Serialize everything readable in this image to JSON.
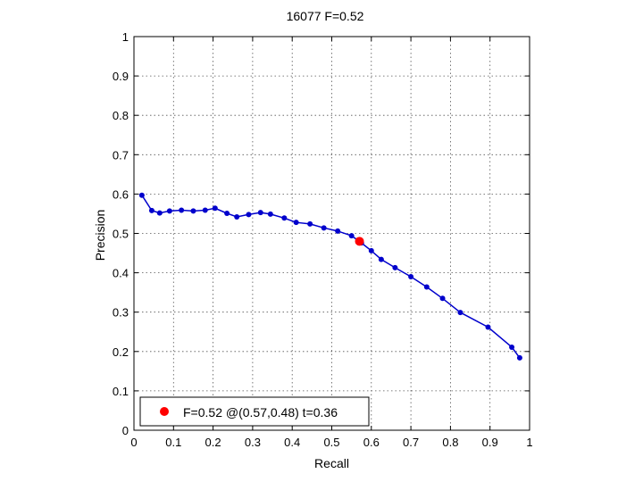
{
  "chart_data": {
    "type": "line",
    "title": "16077 F=0.52",
    "xlabel": "Recall",
    "ylabel": "Precision",
    "xlim": [
      0,
      1
    ],
    "ylim": [
      0,
      1
    ],
    "grid": true,
    "xticks": [
      0,
      0.1,
      0.2,
      0.3,
      0.4,
      0.5,
      0.6,
      0.7,
      0.8,
      0.9,
      1
    ],
    "yticks": [
      0,
      0.1,
      0.2,
      0.3,
      0.4,
      0.5,
      0.6,
      0.7,
      0.8,
      0.9,
      1
    ],
    "xtick_labels": [
      "0",
      "0.1",
      "0.2",
      "0.3",
      "0.4",
      "0.5",
      "0.6",
      "0.7",
      "0.8",
      "0.9",
      "1"
    ],
    "ytick_labels": [
      "0",
      "0.1",
      "0.2",
      "0.3",
      "0.4",
      "0.5",
      "0.6",
      "0.7",
      "0.8",
      "0.9",
      "1"
    ],
    "series": [
      {
        "color": "#0000cc",
        "points": [
          [
            0.02,
            0.597
          ],
          [
            0.045,
            0.558
          ],
          [
            0.065,
            0.552
          ],
          [
            0.09,
            0.557
          ],
          [
            0.12,
            0.559
          ],
          [
            0.15,
            0.557
          ],
          [
            0.18,
            0.559
          ],
          [
            0.205,
            0.564
          ],
          [
            0.235,
            0.551
          ],
          [
            0.26,
            0.542
          ],
          [
            0.29,
            0.548
          ],
          [
            0.32,
            0.553
          ],
          [
            0.345,
            0.549
          ],
          [
            0.38,
            0.539
          ],
          [
            0.41,
            0.528
          ],
          [
            0.445,
            0.524
          ],
          [
            0.48,
            0.514
          ],
          [
            0.515,
            0.506
          ],
          [
            0.55,
            0.494
          ],
          [
            0.575,
            0.476
          ],
          [
            0.6,
            0.456
          ],
          [
            0.625,
            0.434
          ],
          [
            0.66,
            0.413
          ],
          [
            0.7,
            0.39
          ],
          [
            0.74,
            0.364
          ],
          [
            0.78,
            0.335
          ],
          [
            0.825,
            0.299
          ],
          [
            0.895,
            0.262
          ],
          [
            0.955,
            0.211
          ],
          [
            0.975,
            0.184
          ]
        ]
      }
    ],
    "highlight": {
      "x": 0.57,
      "y": 0.48,
      "color": "#ff0000"
    },
    "legend": {
      "text": "F=0.52 @(0.57,0.48) t=0.36",
      "placement": "bottom-left"
    }
  }
}
